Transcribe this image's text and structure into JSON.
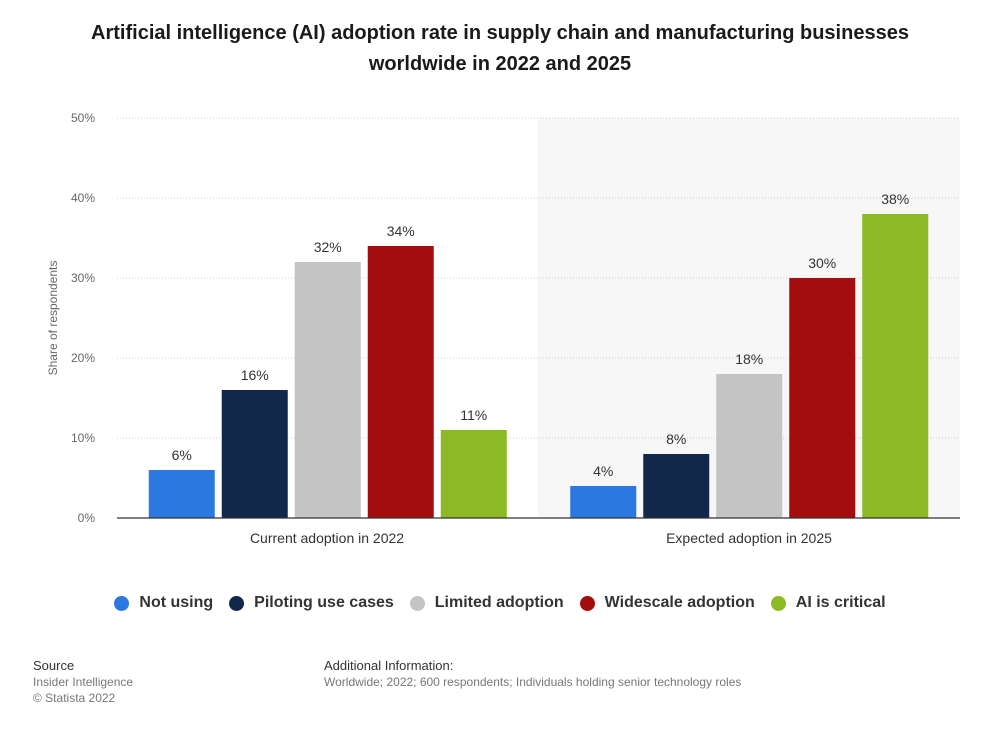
{
  "chart_data": {
    "type": "bar",
    "title": "Artificial intelligence (AI) adoption rate in supply chain and manufacturing businesses worldwide in 2022 and 2025",
    "categories": [
      "Current adoption in 2022",
      "Expected adoption in 2025"
    ],
    "series": [
      {
        "name": "Not using",
        "color": "#2b78e0",
        "values": [
          6,
          4
        ]
      },
      {
        "name": "Piloting use cases",
        "color": "#12284a",
        "values": [
          16,
          8
        ]
      },
      {
        "name": "Limited adoption",
        "color": "#c4c4c4",
        "values": [
          32,
          18
        ]
      },
      {
        "name": "Widescale adoption",
        "color": "#a30d0d",
        "values": [
          34,
          30
        ]
      },
      {
        "name": "AI is critical",
        "color": "#8cba25",
        "values": [
          11,
          38
        ]
      }
    ],
    "ylabel": "Share of respondents",
    "xlabel": "",
    "ylim": [
      0,
      50
    ],
    "yticks": [
      0,
      10,
      20,
      30,
      40,
      50
    ],
    "ytick_labels": [
      "0%",
      "10%",
      "20%",
      "30%",
      "40%",
      "50%"
    ],
    "value_suffix": "%",
    "grid": true,
    "legend_position": "bottom"
  },
  "footer": {
    "source_heading": "Source",
    "source_lines": [
      "Insider Intelligence",
      "© Statista 2022"
    ],
    "info_heading": "Additional Information:",
    "info_text": "Worldwide; 2022; 600 respondents; Individuals holding senior technology roles"
  }
}
